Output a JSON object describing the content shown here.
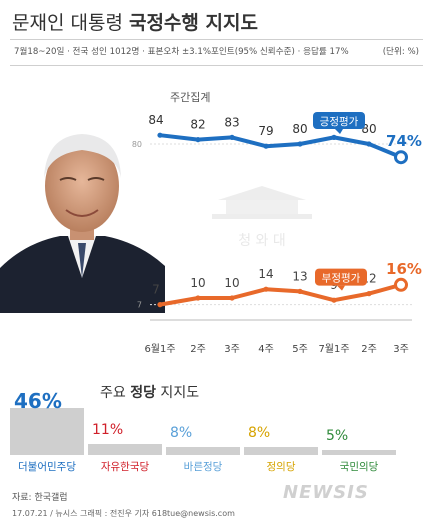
{
  "header": {
    "title_normal": "문재인 대통령 ",
    "title_bold": "국정수행 지지도",
    "survey_info": "7월18~20일 · 전국 성인 1012명 · 표본오차 ±3.1%포인트(95% 신뢰수준) · 응답률 17%",
    "unit": "(단위: %)"
  },
  "trend": {
    "subtitle": "주간집계",
    "building_label": "청 와 대"
  },
  "chart_data": [
    {
      "type": "line",
      "title": "주간집계",
      "x": [
        "6월1주",
        "2주",
        "3주",
        "4주",
        "5주",
        "7월1주",
        "2주",
        "3주"
      ],
      "y_ticks": [
        7,
        80
      ],
      "ylim": [
        0,
        90
      ],
      "grid": true,
      "series": [
        {
          "name": "긍정평가",
          "values": [
            84,
            82,
            83,
            79,
            80,
            83,
            80,
            74
          ],
          "last_label": "74%",
          "color": "#1e6fc1"
        },
        {
          "name": "부정평가",
          "values": [
            7,
            10,
            10,
            14,
            13,
            9,
            12,
            16
          ],
          "last_label": "16%",
          "color": "#e8692a"
        }
      ]
    },
    {
      "type": "bar",
      "title": "주요 정당 지지도",
      "title_normal_1": "주요 ",
      "title_bold": "정당",
      "title_normal_2": " 지지도",
      "categories": [
        "더불어민주당",
        "자유한국당",
        "바른정당",
        "정의당",
        "국민의당"
      ],
      "values": [
        46,
        11,
        8,
        8,
        5
      ],
      "labels": [
        "46%",
        "11%",
        "8%",
        "8%",
        "5%"
      ],
      "colors": [
        "#1e6fc1",
        "#d0202a",
        "#5aa0d8",
        "#d6a300",
        "#2f8a3a"
      ],
      "ylim": [
        0,
        46
      ]
    }
  ],
  "footer": {
    "source": "자료: 한국갤럽",
    "credit": "17.07.21  / 뉴시스 그래픽 : 전진우 기자  618tue@newsis.com",
    "watermark": "NEWSIS"
  }
}
